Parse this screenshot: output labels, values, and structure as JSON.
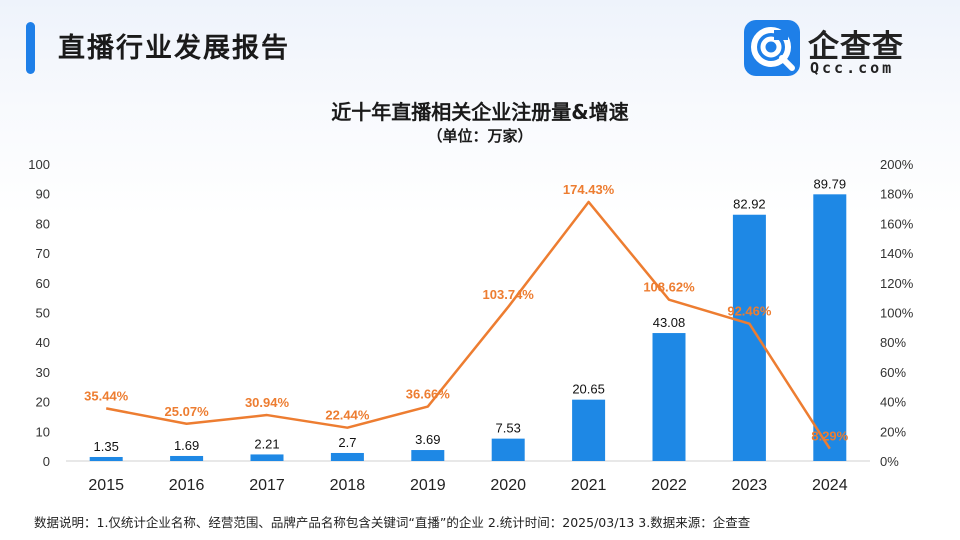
{
  "header": {
    "title": "直播行业发展报告"
  },
  "logo": {
    "name": "企查查",
    "domain": "Qcc.com"
  },
  "chart_data": {
    "type": "bar",
    "title": "近十年直播相关企业注册量&增速",
    "subtitle": "（单位：万家）",
    "categories": [
      "2015",
      "2016",
      "2017",
      "2018",
      "2019",
      "2020",
      "2021",
      "2022",
      "2023",
      "2024"
    ],
    "series": [
      {
        "name": "注册量",
        "type": "bar",
        "axis": "left",
        "values": [
          1.35,
          1.69,
          2.21,
          2.7,
          3.69,
          7.53,
          20.65,
          43.08,
          82.92,
          89.79
        ],
        "labels": [
          "1.35",
          "1.69",
          "2.21",
          "2.7",
          "3.69",
          "7.53",
          "20.65",
          "43.08",
          "82.92",
          "89.79"
        ],
        "color": "#1e88e5"
      },
      {
        "name": "增速",
        "type": "line",
        "axis": "right",
        "values": [
          35.44,
          25.07,
          30.94,
          22.44,
          36.66,
          103.74,
          174.43,
          108.62,
          92.46,
          8.29
        ],
        "labels": [
          "35.44%",
          "25.07%",
          "30.94%",
          "22.44%",
          "36.66%",
          "103.74%",
          "174.43%",
          "108.62%",
          "92.46%",
          "8.29%"
        ],
        "color": "#ed7d31"
      }
    ],
    "y_left": {
      "min": 0,
      "max": 100,
      "ticks": [
        "0",
        "10",
        "20",
        "30",
        "40",
        "50",
        "60",
        "70",
        "80",
        "90",
        "100"
      ]
    },
    "y_right": {
      "min": 0,
      "max": 200,
      "ticks": [
        "0%",
        "20%",
        "40%",
        "60%",
        "80%",
        "100%",
        "120%",
        "140%",
        "160%",
        "180%",
        "200%"
      ]
    },
    "grid": false
  },
  "footer": {
    "note": "数据说明：1.仅统计企业名称、经营范围、品牌产品名称包含关键词“直播”的企业  2.统计时间：2025/03/13   3.数据来源：企查查"
  }
}
